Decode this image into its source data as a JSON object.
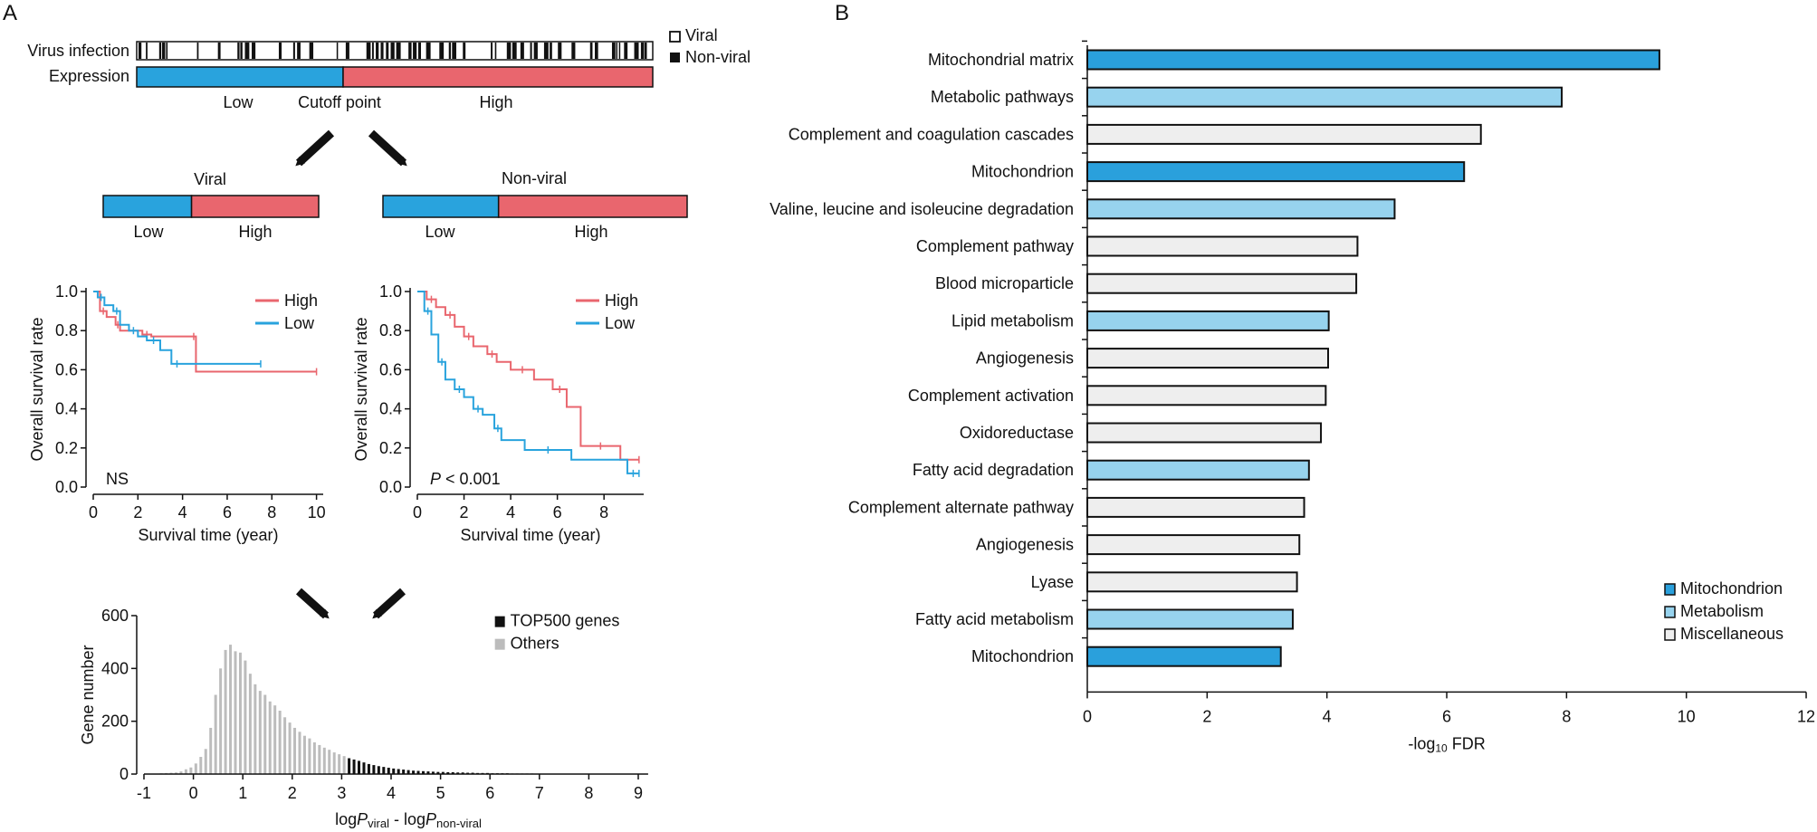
{
  "colors": {
    "low": "#29a3dd",
    "high": "#e9666e",
    "mito": "#2aa0dc",
    "metab": "#97d3ee",
    "misc": "#eeeeee",
    "hist_gray": "#bcbcbc",
    "hist_black": "#111111"
  },
  "panel_a": {
    "label": "A",
    "virus_infection_label": "Virus infection",
    "expression_label": "Expression",
    "legend_viral": "Viral",
    "legend_nonviral": "Non-viral",
    "low": "Low",
    "cutoff": "Cutoff point",
    "high": "High",
    "viral_title": "Viral",
    "nonviral_title": "Non-viral",
    "cutoff_fraction": 0.4,
    "viral_low_fraction": 0.41,
    "nonviral_low_fraction": 0.38
  },
  "panel_b": {
    "label": "B"
  },
  "chart_data": [
    {
      "id": "km_viral",
      "type": "line",
      "title": "Viral",
      "xlabel": "Survival time (year)",
      "ylabel": "Overall survival rate",
      "xlim": [
        0,
        10.3
      ],
      "ylim": [
        0,
        1.0
      ],
      "xticks": [
        0,
        2,
        4,
        6,
        8,
        10
      ],
      "yticks": [
        "0.0",
        "0.2",
        "0.4",
        "0.6",
        "0.8",
        "1.0"
      ],
      "annotation": "NS",
      "series": [
        {
          "name": "High",
          "x": [
            0,
            0.3,
            0.6,
            1.0,
            1.2,
            2.2,
            2.6,
            4.4,
            4.6,
            10.0
          ],
          "y": [
            1.0,
            0.9,
            0.87,
            0.83,
            0.8,
            0.78,
            0.77,
            0.77,
            0.59,
            0.59
          ]
        },
        {
          "name": "Low",
          "x": [
            0,
            0.2,
            0.5,
            0.9,
            1.2,
            1.6,
            2.0,
            2.4,
            3.0,
            3.5,
            4.0,
            7.5
          ],
          "y": [
            1.0,
            0.97,
            0.93,
            0.9,
            0.83,
            0.8,
            0.77,
            0.75,
            0.7,
            0.63,
            0.63,
            0.63
          ]
        }
      ]
    },
    {
      "id": "km_nonviral",
      "type": "line",
      "title": "Non-viral",
      "xlabel": "Survival time (year)",
      "ylabel": "Overall survival rate",
      "xlim": [
        0,
        9.7
      ],
      "ylim": [
        0,
        1.0
      ],
      "xticks": [
        0,
        2,
        4,
        6,
        8
      ],
      "yticks": [
        "0.0",
        "0.2",
        "0.4",
        "0.6",
        "0.8",
        "1.0"
      ],
      "annotation_italic": "P",
      "annotation": " < 0.001",
      "series": [
        {
          "name": "High",
          "x": [
            0,
            0.4,
            0.8,
            1.2,
            1.6,
            2.0,
            2.4,
            3.0,
            3.4,
            4.0,
            5.0,
            5.8,
            6.4,
            7.0,
            8.7,
            9.5
          ],
          "y": [
            1.0,
            0.96,
            0.92,
            0.88,
            0.82,
            0.77,
            0.72,
            0.68,
            0.64,
            0.6,
            0.55,
            0.5,
            0.41,
            0.21,
            0.14,
            0.14
          ]
        },
        {
          "name": "Low",
          "x": [
            0,
            0.3,
            0.6,
            0.9,
            1.2,
            1.6,
            2.0,
            2.4,
            2.8,
            3.3,
            3.6,
            4.6,
            6.6,
            9.0,
            9.5
          ],
          "y": [
            1.0,
            0.9,
            0.78,
            0.64,
            0.55,
            0.5,
            0.46,
            0.4,
            0.37,
            0.3,
            0.24,
            0.19,
            0.14,
            0.07,
            0.07
          ]
        }
      ]
    },
    {
      "id": "histogram",
      "type": "bar",
      "xlabel_parts": [
        "log",
        "P",
        "viral",
        " - log",
        "P",
        "non-viral"
      ],
      "ylabel": "Gene number",
      "xlim": [
        -1,
        9.2
      ],
      "ylim": [
        0,
        600
      ],
      "xticks": [
        -1,
        0,
        1,
        2,
        3,
        4,
        5,
        6,
        7,
        8,
        9
      ],
      "yticks": [
        0,
        200,
        400,
        600
      ],
      "bin_start": -0.65,
      "bin_width": 0.1,
      "top_threshold": 3.1,
      "legend": [
        "TOP500 genes",
        "Others"
      ],
      "values": [
        3,
        4,
        5,
        6,
        10,
        18,
        25,
        40,
        65,
        95,
        175,
        300,
        400,
        470,
        490,
        465,
        460,
        430,
        380,
        340,
        315,
        300,
        275,
        260,
        240,
        215,
        195,
        175,
        160,
        145,
        135,
        120,
        110,
        100,
        92,
        82,
        75,
        68,
        60,
        55,
        50,
        44,
        38,
        34,
        30,
        27,
        24,
        21,
        19,
        17,
        15,
        13,
        12,
        11,
        10,
        9,
        8,
        8,
        7,
        7,
        6,
        6,
        5,
        5,
        4,
        4,
        4,
        3,
        3,
        3,
        3,
        2,
        2,
        2,
        2,
        2,
        1,
        1,
        1,
        1,
        1,
        1,
        1,
        1,
        1,
        1,
        1,
        1,
        1,
        1,
        1
      ]
    },
    {
      "id": "enrichment",
      "type": "bar",
      "orientation": "horizontal",
      "xlabel": "-log",
      "xlabel_sub": "10",
      "xlabel_tail": " FDR",
      "xlim": [
        0,
        12
      ],
      "xticks": [
        0,
        2,
        4,
        6,
        8,
        10,
        12
      ],
      "categories": [
        "Mitochondrial matrix",
        "Metabolic pathways",
        "Complement and coagulation cascades",
        "Mitochondrion",
        "Valine, leucine and isoleucine degradation",
        "Complement pathway",
        "Blood microparticle",
        "Lipid metabolism",
        "Angiogenesis",
        "Complement activation",
        "Oxidoreductase",
        "Fatty acid degradation",
        "Complement alternate pathway",
        "Angiogenesis",
        "Lyase",
        "Fatty acid metabolism",
        "Mitochondrion"
      ],
      "values": [
        9.55,
        7.92,
        6.57,
        6.29,
        5.13,
        4.51,
        4.49,
        4.03,
        4.02,
        3.98,
        3.9,
        3.7,
        3.62,
        3.54,
        3.5,
        3.43,
        3.23
      ],
      "groups": [
        "mito",
        "metab",
        "misc",
        "mito",
        "metab",
        "misc",
        "misc",
        "metab",
        "misc",
        "misc",
        "misc",
        "metab",
        "misc",
        "misc",
        "misc",
        "metab",
        "mito"
      ],
      "legend": [
        {
          "key": "mito",
          "label": "Mitochondrion"
        },
        {
          "key": "metab",
          "label": "Metabolism"
        },
        {
          "key": "misc",
          "label": "Miscellaneous"
        }
      ]
    }
  ]
}
